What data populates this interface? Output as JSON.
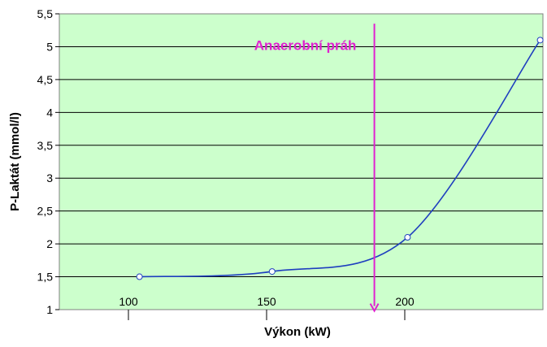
{
  "chart_data": {
    "type": "line",
    "title": "",
    "xlabel": "Výkon (kW)",
    "ylabel": "P-Laktát (mmol/l)",
    "xlim": [
      75,
      250
    ],
    "ylim": [
      1,
      5.5
    ],
    "x_ticks": [
      100,
      150,
      200
    ],
    "x_tick_labels": [
      "100",
      "150",
      "200"
    ],
    "y_ticks": [
      1,
      1.5,
      2,
      2.5,
      3,
      3.5,
      4,
      4.5,
      5,
      5.5
    ],
    "y_tick_labels": [
      "1",
      "1,5",
      "2",
      "2,5",
      "3",
      "3,5",
      "4",
      "4,5",
      "5",
      "5,5"
    ],
    "grid": "horizontal",
    "series": [
      {
        "x": [
          104,
          152,
          201,
          249
        ],
        "y": [
          1.5,
          1.58,
          2.1,
          5.1
        ],
        "smooth": true,
        "color": "#1f3fbf"
      }
    ],
    "annotation": {
      "text": "Anaerobní práh",
      "x": 164,
      "arrow_x": 189,
      "arrow_from_y": 5.35,
      "arrow_to_y": 0.98,
      "color": "#e020d0"
    },
    "plot_background": "#ccffcc"
  }
}
